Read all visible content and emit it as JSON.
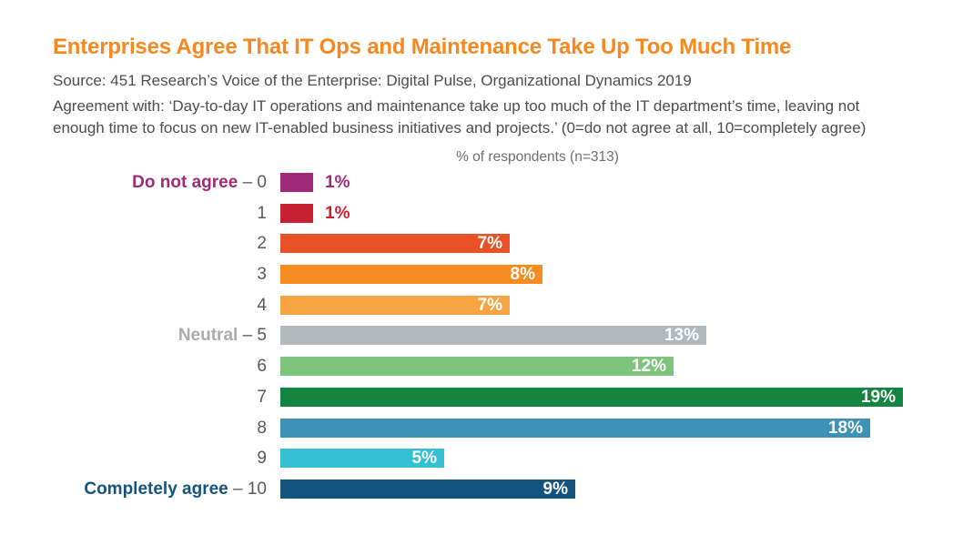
{
  "chart_data": {
    "type": "bar",
    "orientation": "horizontal",
    "title": "Enterprises Agree That IT Ops and Maintenance Take Up Too Much Time",
    "source": "Source: 451 Research’s Voice of the Enterprise: Digital Pulse, Organizational Dynamics 2019",
    "description": "Agreement with: ‘Day-to-day IT operations and maintenance take up too much of the IT department’s time, leaving not enough time to focus on new IT-enabled business initiatives and projects.’ (0=do not agree at all, 10=completely agree)",
    "axis_caption": "% of respondents (n=313)",
    "value_unit": "%",
    "xlim": [
      0,
      19
    ],
    "categories": [
      "0",
      "1",
      "2",
      "3",
      "4",
      "5",
      "6",
      "7",
      "8",
      "9",
      "10"
    ],
    "values": [
      1,
      1,
      7,
      8,
      7,
      13,
      12,
      19,
      18,
      5,
      9
    ],
    "legend": "none",
    "grid": false,
    "rows": [
      {
        "category": "0",
        "category_prefix": "Do not agree",
        "prefix_color": "#9E2A78",
        "label_text": "– 0",
        "value": 1,
        "value_label": "1%",
        "color": "#9E2A78",
        "value_label_inside": false
      },
      {
        "category": "1",
        "label_text": "1",
        "value": 1,
        "value_label": "1%",
        "color": "#C92134",
        "value_label_inside": false
      },
      {
        "category": "2",
        "label_text": "2",
        "value": 7,
        "value_label": "7%",
        "color": "#E95226",
        "value_label_inside": true
      },
      {
        "category": "3",
        "label_text": "3",
        "value": 8,
        "value_label": "8%",
        "color": "#F68C1F",
        "value_label_inside": true
      },
      {
        "category": "4",
        "label_text": "4",
        "value": 7,
        "value_label": "7%",
        "color": "#F6A442",
        "value_label_inside": true
      },
      {
        "category": "5",
        "category_prefix": "Neutral",
        "prefix_color": "#A8ABAD",
        "label_text": "– 5",
        "value": 13,
        "value_label": "13%",
        "color": "#B4B8BA",
        "value_label_inside": true
      },
      {
        "category": "6",
        "label_text": "6",
        "value": 12,
        "value_label": "12%",
        "color": "#7DC57C",
        "value_label_inside": true
      },
      {
        "category": "7",
        "label_text": "7",
        "value": 19,
        "value_label": "19%",
        "color": "#138541",
        "value_label_inside": true
      },
      {
        "category": "8",
        "label_text": "8",
        "value": 18,
        "value_label": "18%",
        "color": "#3E92B5",
        "value_label_inside": true
      },
      {
        "category": "9",
        "label_text": "9",
        "value": 5,
        "value_label": "5%",
        "color": "#35BFD4",
        "value_label_inside": true
      },
      {
        "category": "10",
        "category_prefix": "Completely agree",
        "prefix_color": "#15537F",
        "label_text": "– 10",
        "value": 9,
        "value_label": "9%",
        "color": "#15537F",
        "value_label_inside": true
      }
    ],
    "colors": {
      "title": "#F6881F",
      "body_text": "#4D4D4F",
      "caption_text": "#6D6E71",
      "category_text": "#58595B",
      "background": "#FFFFFF"
    }
  }
}
